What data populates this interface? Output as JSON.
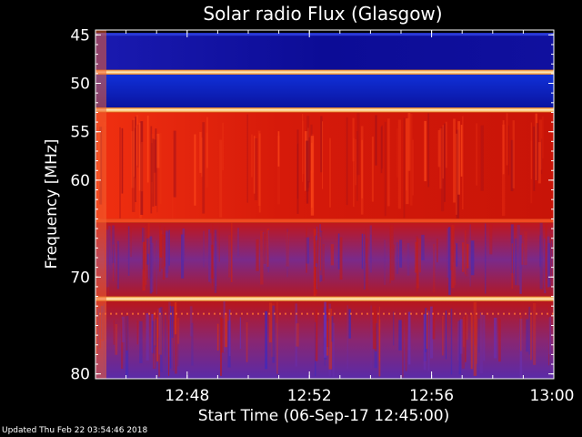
{
  "chart_data": {
    "type": "heatmap",
    "title": "Solar radio Flux (Glasgow)",
    "xlabel": "Start Time (06-Sep-17 12:45:00)",
    "ylabel": "Frequency [MHz]",
    "x_ticks": [
      "12:48",
      "12:52",
      "12:56",
      "13:00"
    ],
    "x_tick_minutes": [
      3,
      7,
      11,
      15
    ],
    "xlim_minutes": [
      0,
      15
    ],
    "y_ticks": [
      "45",
      "50",
      "55",
      "60",
      "70",
      "80"
    ],
    "y_tick_values": [
      45,
      50,
      55,
      60,
      70,
      80
    ],
    "ylim_mhz": [
      44.5,
      80.5
    ],
    "colors": {
      "low": "#0a0a8a",
      "mid": "#5a3cc8",
      "high": "#e01808",
      "peak": "#ffe6a0"
    },
    "bands": [
      {
        "from_mhz": 44.8,
        "to_mhz": 48.6,
        "level": "low"
      },
      {
        "from_mhz": 48.6,
        "to_mhz": 49.1,
        "level": "peak"
      },
      {
        "from_mhz": 49.1,
        "to_mhz": 52.5,
        "level": "low-blue"
      },
      {
        "from_mhz": 52.5,
        "to_mhz": 53.0,
        "level": "peak"
      },
      {
        "from_mhz": 53.0,
        "to_mhz": 64.0,
        "level": "high"
      },
      {
        "from_mhz": 64.0,
        "to_mhz": 64.4,
        "level": "bright"
      },
      {
        "from_mhz": 64.4,
        "to_mhz": 72.0,
        "level": "mixed"
      },
      {
        "from_mhz": 72.0,
        "to_mhz": 72.5,
        "level": "peak"
      },
      {
        "from_mhz": 72.5,
        "to_mhz": 80.5,
        "level": "mixed-low"
      }
    ]
  },
  "footer": {
    "updated": "Updated Thu Feb 22 03:54:46 2018"
  }
}
